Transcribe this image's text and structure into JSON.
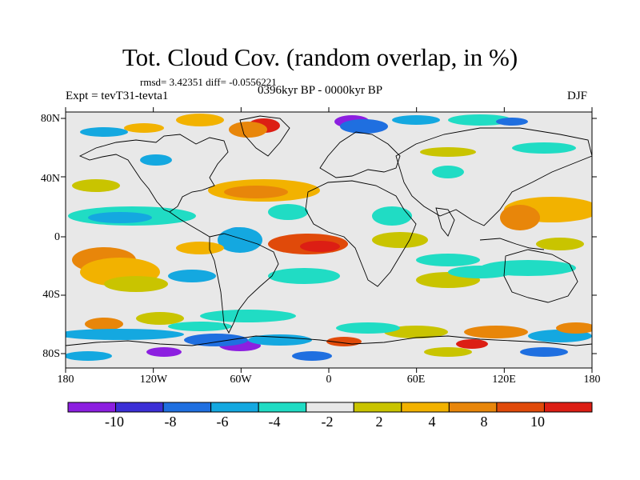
{
  "title": "Tot. Cloud Cov. (random overlap, in %)",
  "stats_line": "rmsd= 3.42351 diff= -0.0556221",
  "experiment": "Expt = tevT31-tevta1",
  "period": "0396kyr BP - 0000kyr BP",
  "season": "DJF",
  "lat_labels": [
    "80N",
    "40N",
    "0",
    "40S",
    "80S"
  ],
  "lon_labels": [
    "180",
    "120W",
    "60W",
    "0",
    "60E",
    "120E",
    "180"
  ],
  "colorbar": {
    "labels": [
      "-10",
      "-8",
      "-6",
      "-4",
      "-2",
      "2",
      "4",
      "8",
      "10"
    ],
    "colors": [
      "#8c1fe0",
      "#3b2fd6",
      "#1f6fe0",
      "#14a8e0",
      "#20dcc4",
      "#e8e8e8",
      "#c9c400",
      "#f2b200",
      "#e8860a",
      "#e04a0a",
      "#dc1e14"
    ]
  },
  "palette": {
    "neutral": "#e8e8e8",
    "purple": "#8c1fe0",
    "blue": "#3b2fd6",
    "midblue": "#1f6fe0",
    "sky": "#14a8e0",
    "cyan": "#20dcc4",
    "olive": "#c9c400",
    "gold": "#f2b200",
    "orange": "#e8860a",
    "redorange": "#e04a0a",
    "red": "#dc1e14"
  }
}
